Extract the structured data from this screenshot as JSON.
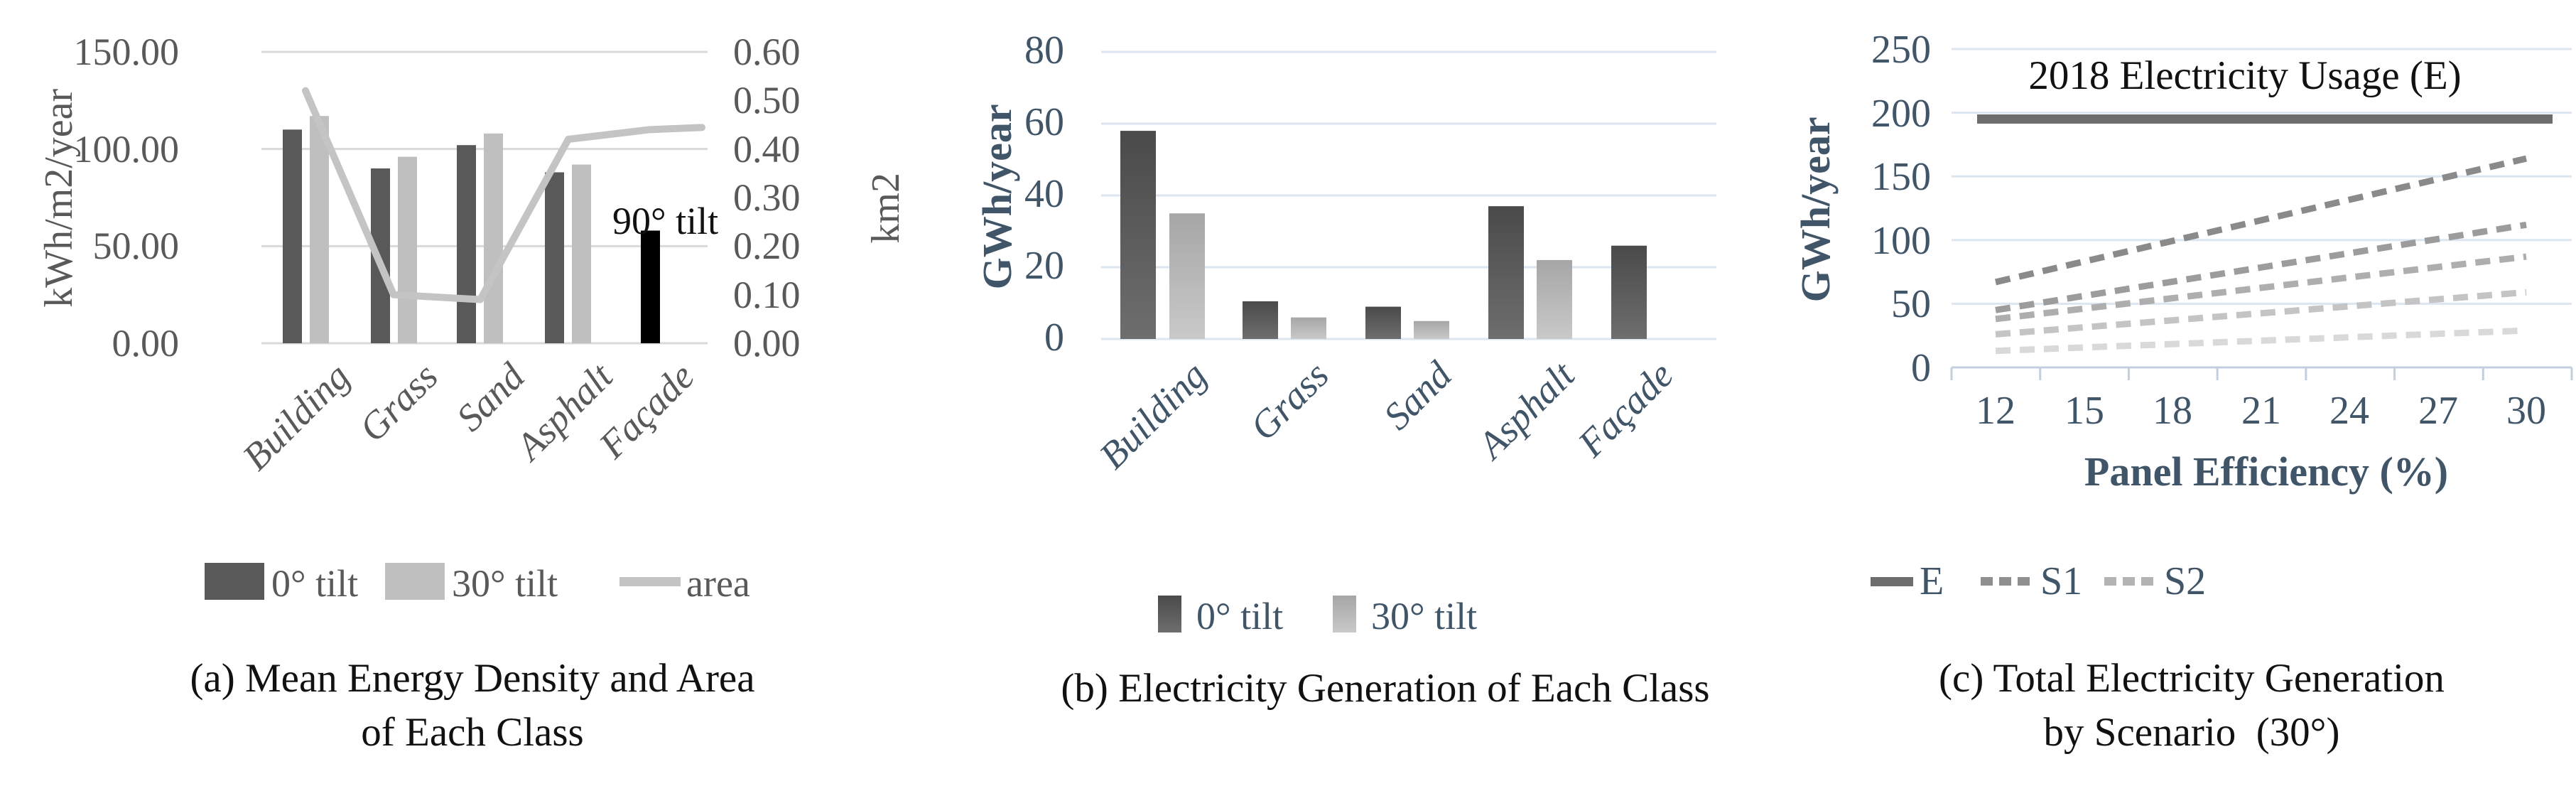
{
  "chart_data": [
    {
      "id": "a",
      "type": "bar+line",
      "caption": [
        "(a) Mean Energy Density and Area",
        "of Each Class"
      ],
      "categories": [
        "Building",
        "Grass",
        "Sand",
        "Asphalt",
        "Façade"
      ],
      "series": [
        {
          "name": "0° tilt",
          "type": "bar",
          "color": "#595959",
          "values": [
            110,
            90,
            102,
            88,
            null
          ]
        },
        {
          "name": "30° tilt",
          "type": "bar",
          "color": "#bfbfbf",
          "values": [
            117,
            96,
            108,
            92,
            null
          ]
        },
        {
          "name": "90° tilt",
          "type": "bar",
          "color": "#000000",
          "values": [
            null,
            null,
            null,
            null,
            58
          ]
        },
        {
          "name": "area",
          "type": "line",
          "axis": "right",
          "color": "#c4c4c4",
          "values": [
            0.52,
            0.1,
            0.09,
            0.42,
            0.44
          ]
        }
      ],
      "left_axis": {
        "label": "kWh/m2/year",
        "min": 0,
        "max": 150,
        "step": 50,
        "ticks": [
          "150.00",
          "100.00",
          "50.00",
          "0.00"
        ]
      },
      "right_axis": {
        "label": "km2",
        "min": 0,
        "max": 0.6,
        "step": 0.1,
        "ticks": [
          "0.60",
          "0.50",
          "0.40",
          "0.30",
          "0.20",
          "0.10",
          "0.00"
        ]
      },
      "annotation": "90° tilt",
      "legend": [
        "0° tilt",
        "30° tilt",
        "area"
      ],
      "grid": true
    },
    {
      "id": "b",
      "type": "bar",
      "caption": [
        "(b) Electricity Generation of Each Class"
      ],
      "categories": [
        "Building",
        "Grass",
        "Sand",
        "Asphalt",
        "Façade"
      ],
      "series": [
        {
          "name": "0° tilt",
          "type": "bar",
          "color_top": "#4a4a4a",
          "color_bottom": "#6e6e6e",
          "values": [
            58,
            10.5,
            9,
            37,
            26
          ]
        },
        {
          "name": "30° tilt",
          "type": "bar",
          "color_top": "#a6a6a6",
          "color_bottom": "#c9c9c9",
          "values": [
            35,
            6,
            5,
            22,
            null
          ]
        }
      ],
      "y_axis": {
        "label": "GWh/year",
        "min": 0,
        "max": 80,
        "step": 20,
        "ticks": [
          "80",
          "60",
          "40",
          "20",
          "0"
        ]
      },
      "legend": [
        "0° tilt",
        "30° tilt"
      ],
      "grid": true
    },
    {
      "id": "c",
      "type": "line",
      "caption": [
        "(c) Total Electricity Generation",
        "by Scenario  (30°)"
      ],
      "x_axis": {
        "label": "Panel Efficiency (%)",
        "ticks": [
          "12",
          "15",
          "18",
          "21",
          "24",
          "27",
          "30"
        ],
        "min": 12,
        "max": 30,
        "step": 3
      },
      "y_axis": {
        "label": "GWh/year",
        "min": 0,
        "max": 250,
        "step": 50,
        "ticks": [
          "250",
          "200",
          "150",
          "100",
          "50",
          "0"
        ]
      },
      "annotation": "2018 Electricity Usage (E)",
      "series": [
        {
          "name": "E",
          "style": "solid",
          "color": "#6d6d6d",
          "values": [
            195,
            195,
            195,
            195,
            195,
            195,
            195
          ]
        },
        {
          "name": "S1",
          "style": "dashed",
          "color": "#8a8a8a",
          "values": [
            67,
            83,
            99,
            116,
            132,
            148,
            164
          ]
        },
        {
          "name": "S1",
          "style": "dashed",
          "color": "#9c9c9c",
          "values": [
            45,
            56,
            67,
            78,
            90,
            101,
            112
          ]
        },
        {
          "name": "S2",
          "style": "dashed",
          "color": "#aeaeae",
          "values": [
            38,
            46,
            54,
            62,
            71,
            79,
            87
          ]
        },
        {
          "name": "S2",
          "style": "dashed",
          "color": "#c4c4c4",
          "values": [
            26,
            31,
            37,
            42,
            48,
            53,
            59
          ]
        },
        {
          "name": "S2",
          "style": "dashed",
          "color": "#d9d9d9",
          "values": [
            13,
            16,
            18,
            21,
            24,
            26,
            29
          ]
        }
      ],
      "legend": [
        {
          "name": "E",
          "style": "solid"
        },
        {
          "name": "S1",
          "style": "dashed"
        },
        {
          "name": "S2",
          "style": "dashed"
        }
      ],
      "grid": true,
      "colors": {
        "grid": "#dce6f1",
        "axis": "#c3cfdf",
        "text_blue": "#415569"
      }
    }
  ]
}
